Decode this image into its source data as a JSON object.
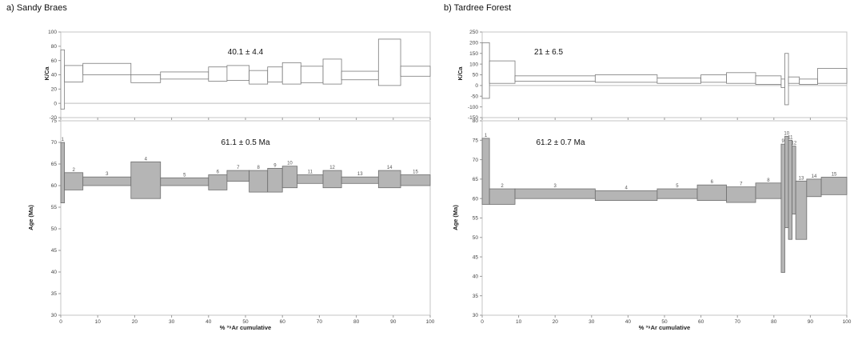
{
  "figure": {
    "panels": [
      {
        "title": "a) Sandy Braes",
        "kca_annotation": "40.1 ± 4.4",
        "age_annotation": "61.1 ± 0.5 Ma",
        "xlabel": "% ³⁹Ar cumulative",
        "kca_ylabel": "K/Ca",
        "age_ylabel": "Age (Ma)"
      },
      {
        "title": "b) Tardree Forest",
        "kca_annotation": "21 ± 6.5",
        "age_annotation": "61.2 ± 0.7 Ma",
        "xlabel": "% ³⁹Ar cumulative",
        "kca_ylabel": "K/Ca",
        "age_ylabel": "Age (Ma)"
      }
    ]
  },
  "chart_data": [
    {
      "type": "bar",
      "panel": "a",
      "plot": "K/Ca spectrum",
      "ylabel": "K/Ca",
      "xlim": [
        0,
        100
      ],
      "ylim": [
        -20,
        100
      ],
      "yticks": [
        -20,
        0,
        20,
        40,
        60,
        80,
        100
      ],
      "xticks": [
        0,
        10,
        20,
        30,
        40,
        50,
        60,
        70,
        80,
        90,
        100
      ],
      "steps": [
        {
          "x0": 0,
          "x1": 1,
          "low": -8,
          "high": 75
        },
        {
          "x0": 1,
          "x1": 6,
          "low": 30,
          "high": 53
        },
        {
          "x0": 6,
          "x1": 19,
          "low": 40,
          "high": 56
        },
        {
          "x0": 19,
          "x1": 27,
          "low": 29,
          "high": 40
        },
        {
          "x0": 27,
          "x1": 40,
          "low": 34,
          "high": 44
        },
        {
          "x0": 40,
          "x1": 45,
          "low": 31,
          "high": 51
        },
        {
          "x0": 45,
          "x1": 51,
          "low": 32,
          "high": 53
        },
        {
          "x0": 51,
          "x1": 56,
          "low": 27,
          "high": 46
        },
        {
          "x0": 56,
          "x1": 60,
          "low": 30,
          "high": 51
        },
        {
          "x0": 60,
          "x1": 65,
          "low": 27,
          "high": 57
        },
        {
          "x0": 65,
          "x1": 71,
          "low": 29,
          "high": 52
        },
        {
          "x0": 71,
          "x1": 76,
          "low": 27,
          "high": 62
        },
        {
          "x0": 76,
          "x1": 86,
          "low": 33,
          "high": 45
        },
        {
          "x0": 86,
          "x1": 92,
          "low": 25,
          "high": 90
        },
        {
          "x0": 92,
          "x1": 100,
          "low": 38,
          "high": 52
        }
      ]
    },
    {
      "type": "bar",
      "panel": "a",
      "plot": "Age spectrum",
      "ylabel": "Age (Ma)",
      "xlabel": "% ³⁹Ar cumulative",
      "xlim": [
        0,
        100
      ],
      "ylim": [
        30,
        75
      ],
      "yticks": [
        30,
        35,
        40,
        45,
        50,
        55,
        60,
        65,
        70,
        75
      ],
      "xticks": [
        0,
        10,
        20,
        30,
        40,
        50,
        60,
        70,
        80,
        90,
        100
      ],
      "steps": [
        {
          "label": "1",
          "x0": 0,
          "x1": 1,
          "low": 56,
          "high": 70
        },
        {
          "label": "2",
          "x0": 1,
          "x1": 6,
          "low": 59,
          "high": 63
        },
        {
          "label": "3",
          "x0": 6,
          "x1": 19,
          "low": 60,
          "high": 62
        },
        {
          "label": "4",
          "x0": 19,
          "x1": 27,
          "low": 57,
          "high": 65.5
        },
        {
          "label": "5",
          "x0": 27,
          "x1": 40,
          "low": 60,
          "high": 61.8
        },
        {
          "label": "6",
          "x0": 40,
          "x1": 45,
          "low": 59,
          "high": 62.5
        },
        {
          "label": "7",
          "x0": 45,
          "x1": 51,
          "low": 61,
          "high": 63.5
        },
        {
          "label": "8",
          "x0": 51,
          "x1": 56,
          "low": 58.5,
          "high": 63.5
        },
        {
          "label": "9",
          "x0": 56,
          "x1": 60,
          "low": 58.5,
          "high": 64
        },
        {
          "label": "10",
          "x0": 60,
          "x1": 64,
          "low": 59.5,
          "high": 64.5
        },
        {
          "label": "11",
          "x0": 64,
          "x1": 71,
          "low": 60.5,
          "high": 62.5
        },
        {
          "label": "12",
          "x0": 71,
          "x1": 76,
          "low": 59.5,
          "high": 63.5
        },
        {
          "label": "13",
          "x0": 76,
          "x1": 86,
          "low": 60.5,
          "high": 62
        },
        {
          "label": "14",
          "x0": 86,
          "x1": 92,
          "low": 59.5,
          "high": 63.5
        },
        {
          "label": "15",
          "x0": 92,
          "x1": 100,
          "low": 60,
          "high": 62.5
        }
      ]
    },
    {
      "type": "bar",
      "panel": "b",
      "plot": "K/Ca spectrum",
      "ylabel": "K/Ca",
      "xlim": [
        0,
        100
      ],
      "ylim": [
        -150,
        250
      ],
      "yticks": [
        -150,
        -100,
        -50,
        0,
        50,
        100,
        150,
        200,
        250
      ],
      "xticks": [
        0,
        10,
        20,
        30,
        40,
        50,
        60,
        70,
        80,
        90,
        100
      ],
      "steps": [
        {
          "x0": 0,
          "x1": 2,
          "low": -60,
          "high": 200
        },
        {
          "x0": 2,
          "x1": 9,
          "low": 10,
          "high": 115
        },
        {
          "x0": 9,
          "x1": 31,
          "low": 20,
          "high": 45
        },
        {
          "x0": 31,
          "x1": 48,
          "low": 15,
          "high": 50
        },
        {
          "x0": 48,
          "x1": 60,
          "low": 10,
          "high": 35
        },
        {
          "x0": 60,
          "x1": 67,
          "low": 15,
          "high": 50
        },
        {
          "x0": 67,
          "x1": 75,
          "low": 10,
          "high": 60
        },
        {
          "x0": 75,
          "x1": 82,
          "low": 5,
          "high": 45
        },
        {
          "x0": 82,
          "x1": 83,
          "low": -10,
          "high": 30
        },
        {
          "x0": 83,
          "x1": 84,
          "low": -90,
          "high": 150
        },
        {
          "x0": 84,
          "x1": 87,
          "low": 10,
          "high": 40
        },
        {
          "x0": 87,
          "x1": 92,
          "low": 5,
          "high": 30
        },
        {
          "x0": 92,
          "x1": 100,
          "low": 10,
          "high": 80
        }
      ]
    },
    {
      "type": "bar",
      "panel": "b",
      "plot": "Age spectrum",
      "ylabel": "Age (Ma)",
      "xlabel": "% ³⁹Ar cumulative",
      "xlim": [
        0,
        100
      ],
      "ylim": [
        30,
        80
      ],
      "yticks": [
        30,
        35,
        40,
        45,
        50,
        55,
        60,
        65,
        70,
        75,
        80
      ],
      "xticks": [
        0,
        10,
        20,
        30,
        40,
        50,
        60,
        70,
        80,
        90,
        100
      ],
      "steps": [
        {
          "label": "1",
          "x0": 0,
          "x1": 2,
          "low": 58.5,
          "high": 75.5
        },
        {
          "label": "2",
          "x0": 2,
          "x1": 9,
          "low": 58.5,
          "high": 62.5
        },
        {
          "label": "3",
          "x0": 9,
          "x1": 31,
          "low": 60,
          "high": 62.5
        },
        {
          "label": "4",
          "x0": 31,
          "x1": 48,
          "low": 59.5,
          "high": 62
        },
        {
          "label": "5",
          "x0": 48,
          "x1": 59,
          "low": 60,
          "high": 62.5
        },
        {
          "label": "6",
          "x0": 59,
          "x1": 67,
          "low": 59.5,
          "high": 63.5
        },
        {
          "label": "7",
          "x0": 67,
          "x1": 75,
          "low": 59,
          "high": 63
        },
        {
          "label": "8",
          "x0": 75,
          "x1": 82,
          "low": 60,
          "high": 64
        },
        {
          "label": "9",
          "x0": 82,
          "x1": 83,
          "low": 41,
          "high": 74
        },
        {
          "label": "10",
          "x0": 83,
          "x1": 84,
          "low": 52.5,
          "high": 76
        },
        {
          "label": "11",
          "x0": 84,
          "x1": 85,
          "low": 49.5,
          "high": 75
        },
        {
          "label": "12",
          "x0": 85,
          "x1": 86,
          "low": 56,
          "high": 73.5
        },
        {
          "label": "13",
          "x0": 86,
          "x1": 89,
          "low": 49.5,
          "high": 64.5
        },
        {
          "label": "14",
          "x0": 89,
          "x1": 93,
          "low": 60.5,
          "high": 65
        },
        {
          "label": "15",
          "x0": 93,
          "x1": 100,
          "low": 61,
          "high": 65.5
        }
      ]
    }
  ]
}
